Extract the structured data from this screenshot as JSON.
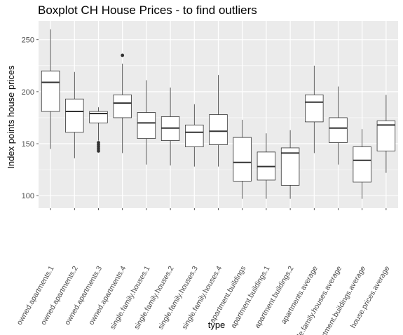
{
  "chart_data": {
    "type": "boxplot",
    "title": "Boxplot CH House Prices - to find outliers",
    "xlabel": "type",
    "ylabel": "Index points house prices",
    "ylim": [
      88,
      268
    ],
    "y_ticks": [
      100,
      150,
      200,
      250
    ],
    "grid": true,
    "legend": "none",
    "panel_background": "#ebebeb",
    "grid_color": "#ffffff",
    "box_fill": "#ffffff",
    "box_stroke": "#333333",
    "categories": [
      "owned.apartments.1",
      "owned.apartments.2",
      "owned.apartments.3",
      "owned.apartments.4",
      "single.family.houses.1",
      "single.family.houses.2",
      "single.family.houses.3",
      "single.family.houses.4",
      "apartment.buildings",
      "apartment.buildings.1",
      "apartment.buildings.2",
      "apartments.average",
      "single.family.houses.average",
      "apartment.buildings.average",
      "house.prices.average"
    ],
    "boxes": [
      {
        "min": 145,
        "q1": 181,
        "median": 209,
        "q3": 220,
        "max": 260,
        "outliers": []
      },
      {
        "min": 136,
        "q1": 161,
        "median": 181,
        "q3": 193,
        "max": 219,
        "outliers": []
      },
      {
        "min": 153,
        "q1": 170,
        "median": 179,
        "q3": 181,
        "max": 185,
        "outliers": [
          151,
          149,
          147,
          145,
          143
        ]
      },
      {
        "min": 141,
        "q1": 175,
        "median": 189,
        "q3": 197,
        "max": 227,
        "outliers": [
          235
        ]
      },
      {
        "min": 130,
        "q1": 155,
        "median": 170,
        "q3": 180,
        "max": 211,
        "outliers": []
      },
      {
        "min": 129,
        "q1": 153,
        "median": 165,
        "q3": 176,
        "max": 204,
        "outliers": []
      },
      {
        "min": 128,
        "q1": 147,
        "median": 161,
        "q3": 168,
        "max": 188,
        "outliers": []
      },
      {
        "min": 128,
        "q1": 149,
        "median": 162,
        "q3": 178,
        "max": 216,
        "outliers": []
      },
      {
        "min": 97,
        "q1": 114,
        "median": 132,
        "q3": 156,
        "max": 173,
        "outliers": []
      },
      {
        "min": 97,
        "q1": 115,
        "median": 128,
        "q3": 142,
        "max": 160,
        "outliers": []
      },
      {
        "min": 97,
        "q1": 110,
        "median": 141,
        "q3": 146,
        "max": 163,
        "outliers": []
      },
      {
        "min": 141,
        "q1": 171,
        "median": 190,
        "q3": 197,
        "max": 225,
        "outliers": []
      },
      {
        "min": 130,
        "q1": 151,
        "median": 165,
        "q3": 175,
        "max": 205,
        "outliers": []
      },
      {
        "min": 97,
        "q1": 113,
        "median": 134,
        "q3": 147,
        "max": 164,
        "outliers": []
      },
      {
        "min": 122,
        "q1": 143,
        "median": 168,
        "q3": 172,
        "max": 197,
        "outliers": []
      }
    ]
  }
}
